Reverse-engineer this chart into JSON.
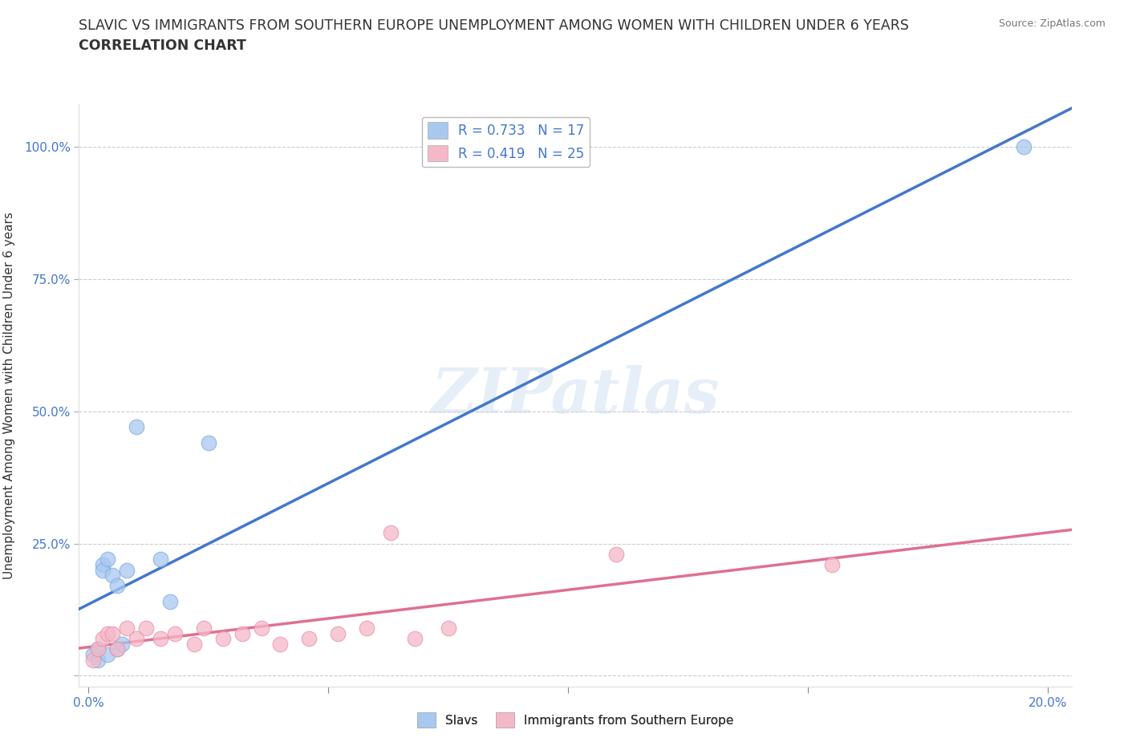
{
  "title_line1": "SLAVIC VS IMMIGRANTS FROM SOUTHERN EUROPE UNEMPLOYMENT AMONG WOMEN WITH CHILDREN UNDER 6 YEARS",
  "title_line2": "CORRELATION CHART",
  "source": "Source: ZipAtlas.com",
  "ylabel": "Unemployment Among Women with Children Under 6 years",
  "xlim": [
    -0.002,
    0.205
  ],
  "ylim": [
    -0.02,
    1.08
  ],
  "xticks": [
    0.0,
    0.05,
    0.1,
    0.15,
    0.2
  ],
  "xtick_labels": [
    "0.0%",
    "",
    "",
    "",
    "20.0%"
  ],
  "yticks": [
    0.0,
    0.25,
    0.5,
    0.75,
    1.0
  ],
  "ytick_labels": [
    "",
    "25.0%",
    "50.0%",
    "75.0%",
    "100.0%"
  ],
  "watermark": "ZIPatlas",
  "slavs_color": "#a8c8f0",
  "slavs_edge_color": "#7aaade",
  "slavs_line_color": "#4477cc",
  "immigrants_color": "#f5b8c8",
  "immigrants_edge_color": "#e890a8",
  "immigrants_line_color": "#e07090",
  "slavs_R": 0.733,
  "slavs_N": 17,
  "immigrants_R": 0.419,
  "immigrants_N": 25,
  "legend_label_1": "R = 0.733   N = 17",
  "legend_label_2": "R = 0.419   N = 25",
  "legend_bottom_label_1": "Slavs",
  "legend_bottom_label_2": "Immigrants from Southern Europe",
  "slavs_x": [
    0.001,
    0.002,
    0.002,
    0.003,
    0.003,
    0.004,
    0.004,
    0.005,
    0.006,
    0.006,
    0.007,
    0.008,
    0.01,
    0.015,
    0.017,
    0.025,
    0.195
  ],
  "slavs_y": [
    0.04,
    0.03,
    0.05,
    0.21,
    0.2,
    0.22,
    0.04,
    0.19,
    0.17,
    0.05,
    0.06,
    0.2,
    0.47,
    0.22,
    0.14,
    0.44,
    1.0
  ],
  "immigrants_x": [
    0.001,
    0.002,
    0.003,
    0.004,
    0.005,
    0.006,
    0.008,
    0.01,
    0.012,
    0.015,
    0.018,
    0.022,
    0.024,
    0.028,
    0.032,
    0.036,
    0.04,
    0.046,
    0.052,
    0.058,
    0.063,
    0.068,
    0.075,
    0.11,
    0.155
  ],
  "immigrants_y": [
    0.03,
    0.05,
    0.07,
    0.08,
    0.08,
    0.05,
    0.09,
    0.07,
    0.09,
    0.07,
    0.08,
    0.06,
    0.09,
    0.07,
    0.08,
    0.09,
    0.06,
    0.07,
    0.08,
    0.09,
    0.27,
    0.07,
    0.09,
    0.23,
    0.21
  ],
  "background_color": "#ffffff",
  "grid_color": "#cccccc",
  "title_fontsize": 12.5,
  "axis_tick_color": "#4477cc",
  "tick_label_fontsize": 11,
  "ylabel_fontsize": 11
}
